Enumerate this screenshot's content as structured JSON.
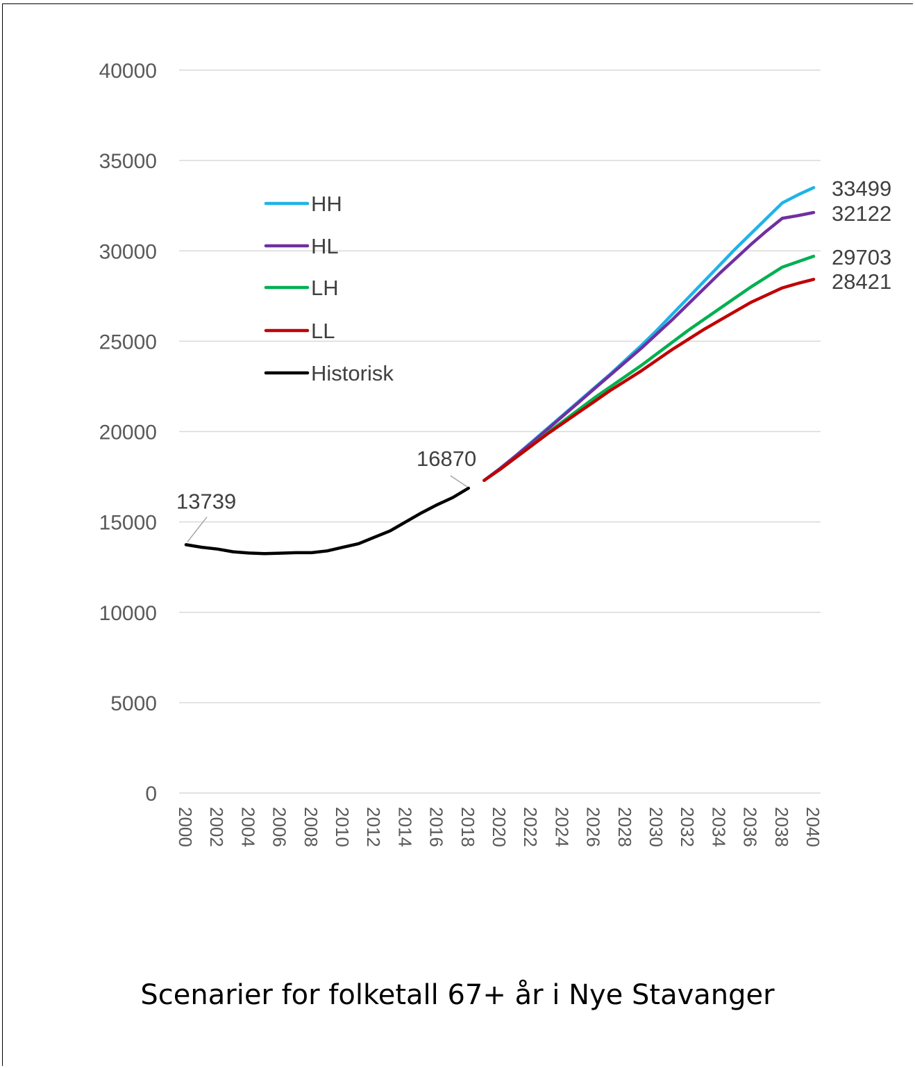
{
  "chart_data": {
    "type": "line",
    "title": "Scenarier for folketall 67+ år i Nye Stavanger",
    "xlabel": "",
    "ylabel": "",
    "ylim": [
      0,
      40000
    ],
    "yticks": [
      "0",
      "5000",
      "10000",
      "15000",
      "20000",
      "25000",
      "30000",
      "35000",
      "40000"
    ],
    "xticks": [
      "2000",
      "2002",
      "2004",
      "2006",
      "2008",
      "2010",
      "2012",
      "2014",
      "2016",
      "2018",
      "2020",
      "2022",
      "2024",
      "2026",
      "2028",
      "2030",
      "2032",
      "2034",
      "2036",
      "2038",
      "2040"
    ],
    "xlim": [
      2000,
      2040
    ],
    "grid": "horizontal",
    "legend_position": "upper-left",
    "series": [
      {
        "name": "HH",
        "color": "#1fb3e8",
        "x": [
          2019,
          2020,
          2021,
          2022,
          2023,
          2024,
          2025,
          2026,
          2027,
          2028,
          2029,
          2030,
          2031,
          2032,
          2033,
          2034,
          2035,
          2036,
          2037,
          2038,
          2039,
          2040
        ],
        "y": [
          17300,
          17950,
          18650,
          19400,
          20150,
          20900,
          21650,
          22400,
          23150,
          23950,
          24750,
          25600,
          26500,
          27400,
          28300,
          29200,
          30100,
          30950,
          31800,
          32650,
          33100,
          33499
        ]
      },
      {
        "name": "HL",
        "color": "#7030a0",
        "x": [
          2019,
          2020,
          2021,
          2022,
          2023,
          2024,
          2025,
          2026,
          2027,
          2028,
          2029,
          2030,
          2031,
          2032,
          2033,
          2034,
          2035,
          2036,
          2037,
          2038,
          2039,
          2040
        ],
        "y": [
          17300,
          17950,
          18650,
          19350,
          20100,
          20850,
          21600,
          22350,
          23100,
          23850,
          24600,
          25400,
          26200,
          27050,
          27900,
          28750,
          29550,
          30350,
          31100,
          31800,
          31950,
          32122
        ]
      },
      {
        "name": "LH",
        "color": "#00b050",
        "x": [
          2019,
          2020,
          2021,
          2022,
          2023,
          2024,
          2025,
          2026,
          2027,
          2028,
          2029,
          2030,
          2031,
          2032,
          2033,
          2034,
          2035,
          2036,
          2037,
          2038,
          2039,
          2040
        ],
        "y": [
          17300,
          17900,
          18550,
          19200,
          19900,
          20550,
          21200,
          21850,
          22450,
          23050,
          23650,
          24300,
          24950,
          25600,
          26200,
          26800,
          27400,
          28000,
          28550,
          29100,
          29400,
          29703
        ]
      },
      {
        "name": "LL",
        "color": "#c00000",
        "x": [
          2019,
          2020,
          2021,
          2022,
          2023,
          2024,
          2025,
          2026,
          2027,
          2028,
          2029,
          2030,
          2031,
          2032,
          2033,
          2034,
          2035,
          2036,
          2037,
          2038,
          2039,
          2040
        ],
        "y": [
          17300,
          17900,
          18550,
          19200,
          19850,
          20450,
          21050,
          21650,
          22250,
          22800,
          23350,
          23950,
          24550,
          25100,
          25650,
          26150,
          26650,
          27150,
          27550,
          27950,
          28200,
          28421
        ]
      },
      {
        "name": "Historisk",
        "color": "#000000",
        "x": [
          2000,
          2001,
          2002,
          2003,
          2004,
          2005,
          2006,
          2007,
          2008,
          2009,
          2010,
          2011,
          2012,
          2013,
          2014,
          2015,
          2016,
          2017,
          2018
        ],
        "y": [
          13739,
          13600,
          13500,
          13350,
          13280,
          13250,
          13270,
          13300,
          13300,
          13400,
          13600,
          13800,
          14150,
          14500,
          15000,
          15500,
          15950,
          16350,
          16870
        ]
      }
    ],
    "annotations": [
      {
        "text": "13739",
        "x": 2000,
        "y": 13739
      },
      {
        "text": "16870",
        "x": 2018,
        "y": 16870
      },
      {
        "text": "33499",
        "x": 2040,
        "y": 33499
      },
      {
        "text": "32122",
        "x": 2040,
        "y": 32122
      },
      {
        "text": "29703",
        "x": 2040,
        "y": 29703
      },
      {
        "text": "28421",
        "x": 2040,
        "y": 28421
      }
    ]
  }
}
